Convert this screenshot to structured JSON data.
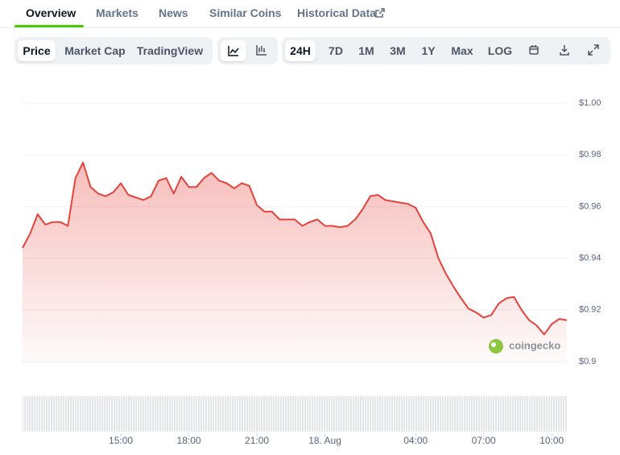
{
  "tabs": [
    "Overview",
    "Markets",
    "News",
    "Similar Coins",
    "Historical Data"
  ],
  "toolbar": {
    "views": [
      "Price",
      "Market Cap",
      "TradingView"
    ],
    "ranges": [
      "24H",
      "7D",
      "1M",
      "3M",
      "1Y",
      "Max",
      "LOG"
    ]
  },
  "watermark": "coingecko",
  "chart_data": {
    "type": "line",
    "color": "#e5433c",
    "x": [
      "10:40",
      "11:00",
      "11:20",
      "11:40",
      "12:00",
      "12:20",
      "12:40",
      "13:00",
      "13:20",
      "13:40",
      "14:00",
      "14:20",
      "14:40",
      "15:00",
      "15:20",
      "15:40",
      "16:00",
      "16:20",
      "16:40",
      "17:00",
      "17:20",
      "17:40",
      "18:00",
      "18:20",
      "18:40",
      "19:00",
      "19:20",
      "19:40",
      "20:00",
      "20:20",
      "20:40",
      "21:00",
      "21:20",
      "21:40",
      "22:00",
      "22:20",
      "22:40",
      "23:00",
      "23:20",
      "23:40",
      "00:00",
      "00:20",
      "00:40",
      "01:00",
      "01:20",
      "01:40",
      "02:00",
      "02:20",
      "02:40",
      "03:00",
      "03:20",
      "03:40",
      "04:00",
      "04:20",
      "04:40",
      "05:00",
      "05:20",
      "05:40",
      "06:00",
      "06:20",
      "06:40",
      "07:00",
      "07:20",
      "07:40",
      "08:00",
      "08:20",
      "08:40",
      "09:00",
      "09:20",
      "09:40",
      "10:00",
      "10:20",
      "10:40"
    ],
    "values": [
      0.944,
      0.9495,
      0.957,
      0.953,
      0.954,
      0.954,
      0.9525,
      0.971,
      0.977,
      0.9675,
      0.965,
      0.964,
      0.9655,
      0.969,
      0.9645,
      0.9635,
      0.9625,
      0.964,
      0.97,
      0.971,
      0.965,
      0.9715,
      0.9675,
      0.9675,
      0.971,
      0.973,
      0.97,
      0.969,
      0.967,
      0.969,
      0.968,
      0.9605,
      0.958,
      0.958,
      0.955,
      0.955,
      0.955,
      0.9525,
      0.954,
      0.955,
      0.9525,
      0.9525,
      0.952,
      0.9525,
      0.955,
      0.959,
      0.964,
      0.9645,
      0.9625,
      0.962,
      0.9615,
      0.961,
      0.9595,
      0.954,
      0.9495,
      0.94,
      0.934,
      0.929,
      0.9245,
      0.9205,
      0.919,
      0.917,
      0.918,
      0.9225,
      0.9245,
      0.925,
      0.92,
      0.916,
      0.914,
      0.9105,
      0.9145,
      0.9165,
      0.916
    ],
    "ylim": [
      0.9,
      1.0
    ],
    "yticks": [
      {
        "value": 1.0,
        "label": "$1.00"
      },
      {
        "value": 0.98,
        "label": "$0.98"
      },
      {
        "value": 0.96,
        "label": "$0.96"
      },
      {
        "value": 0.94,
        "label": "$0.94"
      },
      {
        "value": 0.92,
        "label": "$0.92"
      },
      {
        "value": 0.9,
        "label": "$0.9"
      }
    ],
    "xticks": [
      "15:00",
      "18:00",
      "21:00",
      {
        "value": "00:00",
        "label": "18. Aug"
      },
      "04:00",
      "07:00",
      "10:00"
    ],
    "grid": true
  }
}
